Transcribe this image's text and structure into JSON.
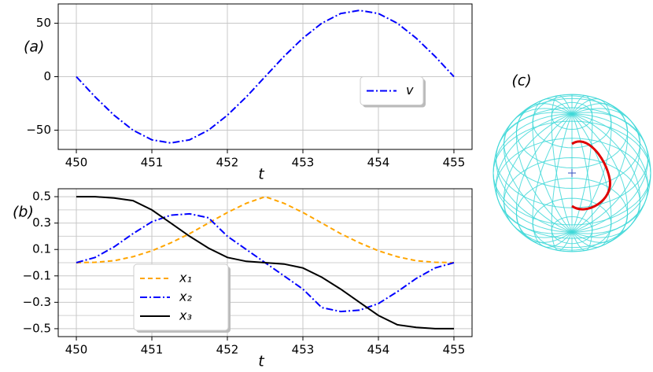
{
  "chart_data": [
    {
      "type": "line",
      "label": "(a)",
      "xlabel": "t",
      "x": [
        450,
        450.25,
        450.5,
        450.75,
        451,
        451.25,
        451.5,
        451.75,
        452,
        452.25,
        452.5,
        452.75,
        453,
        453.25,
        453.5,
        453.75,
        454,
        454.25,
        454.5,
        454.75,
        455
      ],
      "series": [
        {
          "name": "v",
          "color": "#0000ff",
          "style": "dashdot",
          "values": [
            0,
            -19,
            -36,
            -50,
            -59,
            -62,
            -59,
            -50,
            -36,
            -19,
            0,
            19,
            36,
            50,
            59,
            62,
            59,
            50,
            36,
            19,
            0
          ]
        }
      ],
      "xlim": [
        449.76,
        455.24
      ],
      "xticks": [
        450,
        451,
        452,
        453,
        454,
        455
      ],
      "ylim": [
        -68,
        68
      ],
      "yticks": [
        {
          "value": -50,
          "label": "−50"
        },
        0,
        50
      ],
      "grid": true,
      "legend": "center right"
    },
    {
      "type": "line",
      "label": "(b)",
      "xlabel": "t",
      "x": [
        450,
        450.25,
        450.5,
        450.75,
        451,
        451.25,
        451.5,
        451.75,
        452,
        452.25,
        452.5,
        452.75,
        453,
        453.25,
        453.5,
        453.75,
        454,
        454.25,
        454.5,
        454.75,
        455
      ],
      "series": [
        {
          "name": "x₁",
          "color": "#ffa500",
          "style": "dashed",
          "values": [
            0,
            0.003,
            0.015,
            0.045,
            0.09,
            0.15,
            0.22,
            0.3,
            0.38,
            0.45,
            0.5,
            0.45,
            0.38,
            0.3,
            0.22,
            0.15,
            0.09,
            0.045,
            0.015,
            0.003,
            0
          ]
        },
        {
          "name": "x₂",
          "color": "#0000ff",
          "style": "dashdot",
          "values": [
            0,
            0.04,
            0.12,
            0.22,
            0.31,
            0.36,
            0.37,
            0.34,
            0.2,
            0.1,
            0,
            -0.1,
            -0.2,
            -0.34,
            -0.37,
            -0.36,
            -0.31,
            -0.22,
            -0.12,
            -0.04,
            0
          ]
        },
        {
          "name": "x₃",
          "color": "#000000",
          "style": "solid",
          "values": [
            0.5,
            0.5,
            0.49,
            0.47,
            0.4,
            0.3,
            0.2,
            0.11,
            0.04,
            0.01,
            0,
            -0.01,
            -0.04,
            -0.11,
            -0.2,
            -0.3,
            -0.4,
            -0.47,
            -0.49,
            -0.5,
            -0.5
          ]
        }
      ],
      "xlim": [
        449.76,
        455.24
      ],
      "xticks": [
        450,
        451,
        452,
        453,
        454,
        455
      ],
      "ylim": [
        -0.56,
        0.56
      ],
      "yticks": [
        {
          "value": -0.5,
          "label": "−0.5"
        },
        {
          "value": -0.3,
          "label": "−0.3"
        },
        {
          "value": -0.1,
          "label": "−0.1"
        },
        0.1,
        0.3,
        0.5
      ],
      "yminor": [
        -0.4,
        -0.2,
        0,
        0.2,
        0.4
      ],
      "grid": true,
      "legend": "lower left"
    },
    {
      "type": "bloch-sphere",
      "label": "(c)"
    }
  ]
}
